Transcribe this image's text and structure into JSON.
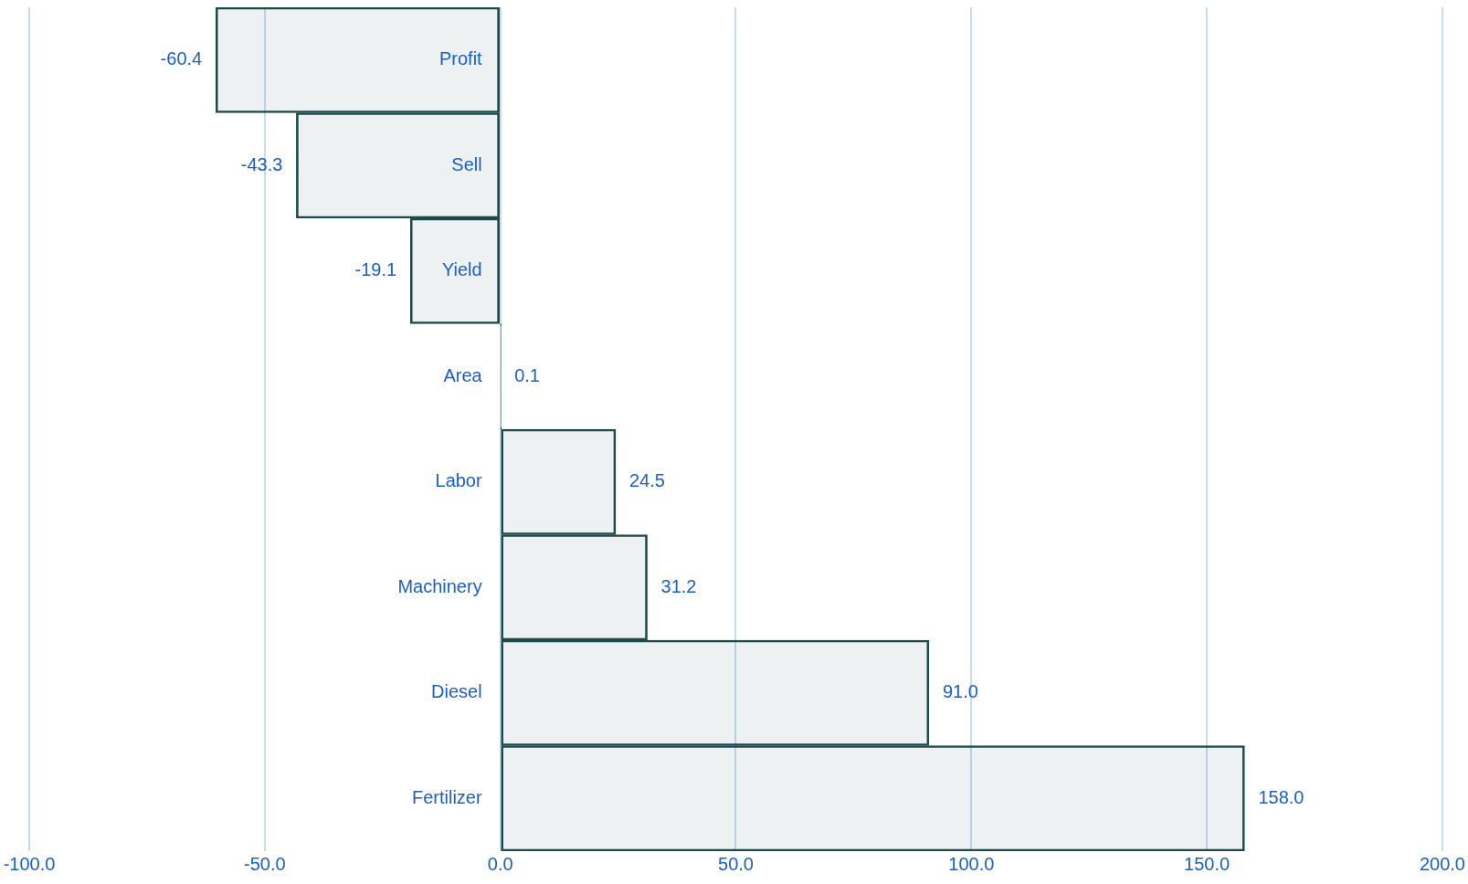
{
  "chart_data": {
    "type": "bar",
    "orientation": "horizontal",
    "categories": [
      "Profit",
      "Sell",
      "Yield",
      "Area",
      "Labor",
      "Machinery",
      "Diesel",
      "Fertilizer"
    ],
    "values": [
      -60.4,
      -43.3,
      -19.1,
      0.1,
      24.5,
      31.2,
      91.0,
      158.0
    ],
    "value_labels": [
      "-60.4",
      "-43.3",
      "-19.1",
      "0.1",
      "24.5",
      "31.2",
      "91.0",
      "158.0"
    ],
    "color": "#1f4a4a",
    "xlim": [
      -100,
      200
    ],
    "xticks": [
      {
        "value": -100,
        "label": "-100.0"
      },
      {
        "value": -50,
        "label": "-50.0"
      },
      {
        "value": 0,
        "label": "0.0"
      },
      {
        "value": 50,
        "label": "50.0"
      },
      {
        "value": 100,
        "label": "100.0"
      },
      {
        "value": 150,
        "label": "150.0"
      },
      {
        "value": 200,
        "label": "200.0"
      }
    ],
    "grid": "x",
    "legend": false
  }
}
